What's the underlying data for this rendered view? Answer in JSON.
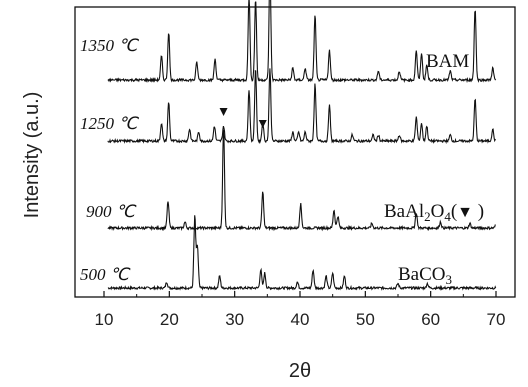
{
  "chart_data": {
    "type": "line",
    "title": "",
    "xlabel": "2θ",
    "ylabel": "Intensity (a.u.)",
    "xlim": [
      10,
      72
    ],
    "x_ticks": [
      "10",
      "20",
      "30",
      "40",
      "50",
      "60",
      "70"
    ],
    "x_tick_values": [
      10,
      20,
      30,
      40,
      50,
      60,
      70
    ],
    "grid": false,
    "line_color": "#111111",
    "series": [
      {
        "name": "500 ℃",
        "phase_label": "BaCO",
        "phase_label_sub": "3",
        "baseline": 0.0,
        "peaks": [
          [
            19.6,
            0.02
          ],
          [
            23.9,
            0.24
          ],
          [
            24.3,
            0.14
          ],
          [
            27.7,
            0.04
          ],
          [
            34.0,
            0.06
          ],
          [
            34.6,
            0.05
          ],
          [
            39.6,
            0.02
          ],
          [
            42.0,
            0.06
          ],
          [
            44.0,
            0.04
          ],
          [
            45.0,
            0.05
          ],
          [
            46.8,
            0.04
          ],
          [
            55.0,
            0.015
          ],
          [
            59.5,
            0.015
          ]
        ]
      },
      {
        "name": "900 ℃",
        "phase_label": "BaAl",
        "phase_label_sub": "2",
        "phase_label_tail": "O",
        "phase_label_sub2": "4",
        "phase_marker": "▼",
        "baseline": 0.0,
        "peaks": [
          [
            19.8,
            0.09
          ],
          [
            22.4,
            0.02
          ],
          [
            28.3,
            0.33
          ],
          [
            34.3,
            0.12
          ],
          [
            40.1,
            0.08
          ],
          [
            45.2,
            0.06
          ],
          [
            45.8,
            0.04
          ],
          [
            51.0,
            0.015
          ],
          [
            57.8,
            0.05
          ],
          [
            61.5,
            0.02
          ],
          [
            66.0,
            0.015
          ],
          [
            70.0,
            0.01
          ]
        ]
      },
      {
        "name": "1250 ℃",
        "phase_label": "",
        "baseline": 0.0,
        "markers_x": [
          28.3,
          34.3
        ],
        "peaks": [
          [
            18.8,
            0.06
          ],
          [
            19.9,
            0.13
          ],
          [
            23.1,
            0.04
          ],
          [
            24.5,
            0.03
          ],
          [
            26.9,
            0.05
          ],
          [
            28.3,
            0.05
          ],
          [
            32.2,
            0.17
          ],
          [
            33.2,
            0.24
          ],
          [
            34.3,
            0.06
          ],
          [
            35.4,
            0.24
          ],
          [
            38.9,
            0.03
          ],
          [
            39.8,
            0.03
          ],
          [
            40.8,
            0.03
          ],
          [
            42.3,
            0.19
          ],
          [
            44.5,
            0.12
          ],
          [
            48.0,
            0.02
          ],
          [
            51.2,
            0.02
          ],
          [
            52.0,
            0.02
          ],
          [
            55.2,
            0.02
          ],
          [
            57.8,
            0.08
          ],
          [
            58.6,
            0.06
          ],
          [
            59.4,
            0.05
          ],
          [
            63.0,
            0.02
          ],
          [
            66.8,
            0.14
          ],
          [
            69.5,
            0.04
          ]
        ]
      },
      {
        "name": "1350 ℃",
        "phase_label": "BAM",
        "baseline": 0.0,
        "peaks": [
          [
            18.8,
            0.08
          ],
          [
            19.9,
            0.16
          ],
          [
            24.2,
            0.06
          ],
          [
            27.0,
            0.07
          ],
          [
            32.2,
            0.28
          ],
          [
            33.2,
            0.27
          ],
          [
            35.4,
            0.36
          ],
          [
            38.9,
            0.04
          ],
          [
            40.8,
            0.04
          ],
          [
            42.3,
            0.22
          ],
          [
            44.5,
            0.1
          ],
          [
            52.0,
            0.03
          ],
          [
            55.2,
            0.03
          ],
          [
            57.8,
            0.1
          ],
          [
            58.6,
            0.09
          ],
          [
            59.4,
            0.05
          ],
          [
            63.0,
            0.03
          ],
          [
            66.8,
            0.24
          ],
          [
            69.5,
            0.04
          ]
        ]
      }
    ]
  }
}
